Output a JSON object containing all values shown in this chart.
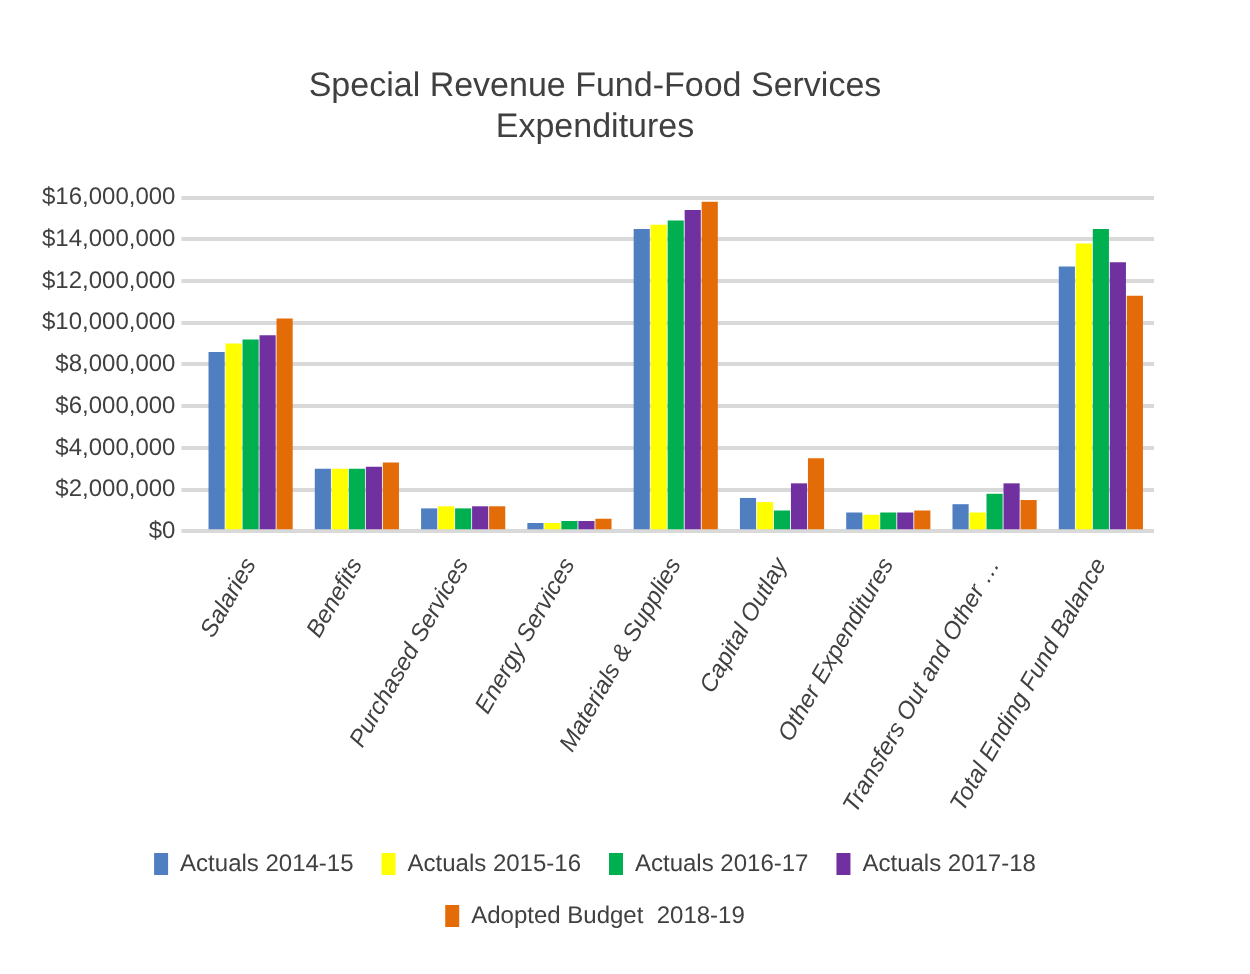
{
  "chart_data": {
    "type": "bar",
    "title": [
      "Special Revenue Fund-Food Services",
      "Expenditures"
    ],
    "categories": [
      "Salaries",
      "Benefits",
      "Purchased Services",
      "Energy Services",
      "Materials & Supplies",
      "Capital Outlay",
      "Other Expenditures",
      "Transfers Out and Other …",
      "Total Ending Fund Balance"
    ],
    "series": [
      {
        "name": "Actuals 2014-15",
        "color": "#4f7ec1",
        "values": [
          8600000,
          3000000,
          1100000,
          400000,
          14500000,
          1600000,
          900000,
          1300000,
          12700000
        ]
      },
      {
        "name": "Actuals 2015-16",
        "color": "#ffff00",
        "values": [
          9000000,
          3000000,
          1200000,
          400000,
          14700000,
          1400000,
          800000,
          900000,
          13800000
        ]
      },
      {
        "name": "Actuals 2016-17",
        "color": "#00b050",
        "values": [
          9200000,
          3000000,
          1100000,
          500000,
          14900000,
          1000000,
          900000,
          1800000,
          14500000
        ]
      },
      {
        "name": "Actuals 2017-18",
        "color": "#7030a0",
        "values": [
          9400000,
          3100000,
          1200000,
          500000,
          15400000,
          2300000,
          900000,
          2300000,
          12900000
        ]
      },
      {
        "name": "Adopted Budget  2018-19",
        "color": "#e36c09",
        "values": [
          10200000,
          3300000,
          1200000,
          600000,
          15800000,
          3500000,
          1000000,
          1500000,
          11300000
        ]
      }
    ],
    "ylim": [
      0,
      16000000
    ],
    "yticks": [
      {
        "value": 0,
        "label": "$0"
      },
      {
        "value": 2000000,
        "label": "$2,000,000"
      },
      {
        "value": 4000000,
        "label": "$4,000,000"
      },
      {
        "value": 6000000,
        "label": "$6,000,000"
      },
      {
        "value": 8000000,
        "label": "$8,000,000"
      },
      {
        "value": 10000000,
        "label": "$10,000,000"
      },
      {
        "value": 12000000,
        "label": "$12,000,000"
      },
      {
        "value": 14000000,
        "label": "$14,000,000"
      },
      {
        "value": 16000000,
        "label": "$16,000,000"
      }
    ],
    "grid": "y",
    "legend": "bottom"
  }
}
